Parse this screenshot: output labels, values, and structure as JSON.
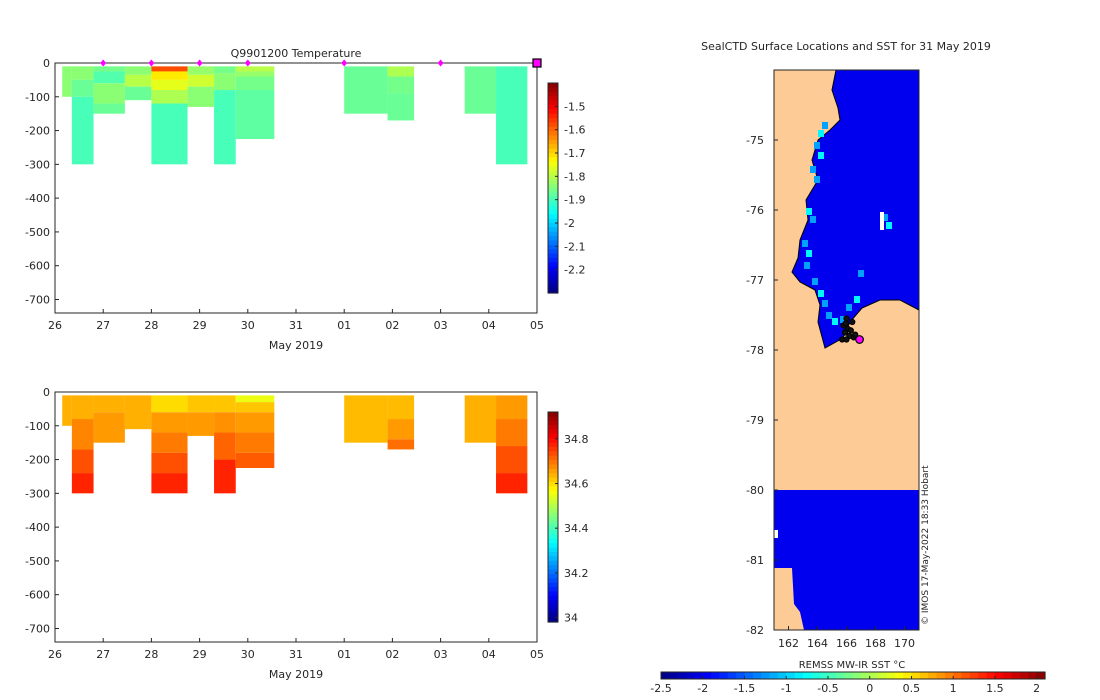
{
  "colors": {
    "land": "#fccb96",
    "ocean_deep": "#0a4fd0",
    "marker_magenta": "#ff00ff",
    "axis": "#262626",
    "nodata": "#ffffff"
  },
  "chart_data": [
    {
      "id": "temperature",
      "type": "heatmap",
      "title": "Q9901200  Temperature",
      "xlabel": "May 2019",
      "ylabel": "",
      "x_tick_labels": [
        "26",
        "27",
        "28",
        "29",
        "30",
        "31",
        "01",
        "02",
        "03",
        "04",
        "05"
      ],
      "xlim": [
        26,
        36
      ],
      "ylim": [
        -740,
        0
      ],
      "y_ticks": [
        0,
        -100,
        -200,
        -300,
        -400,
        -500,
        -600,
        -700
      ],
      "colorbar": {
        "min": -2.3,
        "max": -1.4,
        "colormap": "jet",
        "ticks": [
          -1.5,
          -1.6,
          -1.7,
          -1.8,
          -1.9,
          -2,
          -2.1,
          -2.2
        ]
      },
      "profiles": [
        {
          "x0": 26.15,
          "x1": 26.35,
          "segments": [
            {
              "d0": 10,
              "d1": 100,
              "v": -1.84
            }
          ]
        },
        {
          "x0": 26.35,
          "x1": 26.8,
          "segments": [
            {
              "d0": 10,
              "d1": 50,
              "v": -1.84
            },
            {
              "d0": 50,
              "d1": 100,
              "v": -1.87
            },
            {
              "d0": 100,
              "d1": 300,
              "v": -1.9
            }
          ]
        },
        {
          "x0": 26.8,
          "x1": 27.45,
          "segments": [
            {
              "d0": 10,
              "d1": 25,
              "v": -1.86
            },
            {
              "d0": 25,
              "d1": 60,
              "v": -1.89
            },
            {
              "d0": 60,
              "d1": 120,
              "v": -1.84
            },
            {
              "d0": 120,
              "d1": 150,
              "v": -1.87
            }
          ]
        },
        {
          "x0": 27.45,
          "x1": 28.0,
          "segments": [
            {
              "d0": 10,
              "d1": 35,
              "v": -1.84
            },
            {
              "d0": 35,
              "d1": 70,
              "v": -1.8
            },
            {
              "d0": 70,
              "d1": 110,
              "v": -1.87
            }
          ]
        },
        {
          "x0": 28.0,
          "x1": 28.75,
          "segments": [
            {
              "d0": 10,
              "d1": 25,
              "v": -1.58
            },
            {
              "d0": 25,
              "d1": 50,
              "v": -1.72
            },
            {
              "d0": 50,
              "d1": 80,
              "v": -1.76
            },
            {
              "d0": 80,
              "d1": 120,
              "v": -1.81
            },
            {
              "d0": 120,
              "d1": 300,
              "v": -1.9
            }
          ]
        },
        {
          "x0": 28.75,
          "x1": 29.3,
          "segments": [
            {
              "d0": 10,
              "d1": 35,
              "v": -1.83
            },
            {
              "d0": 35,
              "d1": 70,
              "v": -1.78
            },
            {
              "d0": 70,
              "d1": 130,
              "v": -1.84
            }
          ]
        },
        {
          "x0": 29.3,
          "x1": 29.75,
          "segments": [
            {
              "d0": 10,
              "d1": 30,
              "v": -1.86
            },
            {
              "d0": 30,
              "d1": 80,
              "v": -1.84
            },
            {
              "d0": 80,
              "d1": 300,
              "v": -1.9
            }
          ]
        },
        {
          "x0": 29.75,
          "x1": 30.55,
          "segments": [
            {
              "d0": 10,
              "d1": 25,
              "v": -1.8
            },
            {
              "d0": 25,
              "d1": 40,
              "v": -1.83
            },
            {
              "d0": 40,
              "d1": 80,
              "v": -1.86
            },
            {
              "d0": 80,
              "d1": 225,
              "v": -1.88
            }
          ]
        },
        {
          "x0": 32.0,
          "x1": 32.9,
          "segments": [
            {
              "d0": 10,
              "d1": 150,
              "v": -1.87
            }
          ]
        },
        {
          "x0": 32.9,
          "x1": 33.45,
          "segments": [
            {
              "d0": 10,
              "d1": 40,
              "v": -1.81
            },
            {
              "d0": 40,
              "d1": 90,
              "v": -1.86
            },
            {
              "d0": 90,
              "d1": 170,
              "v": -1.87
            }
          ]
        },
        {
          "x0": 34.5,
          "x1": 35.15,
          "segments": [
            {
              "d0": 10,
              "d1": 150,
              "v": -1.87
            }
          ]
        },
        {
          "x0": 35.15,
          "x1": 35.8,
          "segments": [
            {
              "d0": 10,
              "d1": 300,
              "v": -1.9
            }
          ]
        }
      ],
      "surface_markers": [
        27.0,
        28.0,
        29.0,
        30.0,
        32.0,
        34.0
      ],
      "end_marker": 36.0
    },
    {
      "id": "salinity",
      "type": "heatmap",
      "title": "",
      "xlabel": "May 2019",
      "ylabel": "",
      "x_tick_labels": [
        "26",
        "27",
        "28",
        "29",
        "30",
        "31",
        "01",
        "02",
        "03",
        "04",
        "05"
      ],
      "xlim": [
        26,
        36
      ],
      "ylim": [
        -740,
        0
      ],
      "y_ticks": [
        0,
        -100,
        -200,
        -300,
        -400,
        -500,
        -600,
        -700
      ],
      "colorbar": {
        "min": 33.98,
        "max": 34.92,
        "colormap": "jet",
        "ticks": [
          34.8,
          34.6,
          34.4,
          34.2,
          34
        ]
      },
      "profiles": [
        {
          "x0": 26.15,
          "x1": 26.35,
          "segments": [
            {
              "d0": 10,
              "d1": 100,
              "v": 34.64
            }
          ]
        },
        {
          "x0": 26.35,
          "x1": 26.8,
          "segments": [
            {
              "d0": 10,
              "d1": 80,
              "v": 34.64
            },
            {
              "d0": 80,
              "d1": 170,
              "v": 34.68
            },
            {
              "d0": 170,
              "d1": 240,
              "v": 34.73
            },
            {
              "d0": 240,
              "d1": 300,
              "v": 34.77
            }
          ]
        },
        {
          "x0": 26.8,
          "x1": 27.45,
          "segments": [
            {
              "d0": 10,
              "d1": 60,
              "v": 34.64
            },
            {
              "d0": 60,
              "d1": 150,
              "v": 34.66
            }
          ]
        },
        {
          "x0": 27.45,
          "x1": 28.0,
          "segments": [
            {
              "d0": 10,
              "d1": 110,
              "v": 34.64
            }
          ]
        },
        {
          "x0": 28.0,
          "x1": 28.75,
          "segments": [
            {
              "d0": 10,
              "d1": 60,
              "v": 34.6
            },
            {
              "d0": 60,
              "d1": 120,
              "v": 34.66
            },
            {
              "d0": 120,
              "d1": 180,
              "v": 34.69
            },
            {
              "d0": 180,
              "d1": 240,
              "v": 34.73
            },
            {
              "d0": 240,
              "d1": 300,
              "v": 34.77
            }
          ]
        },
        {
          "x0": 28.75,
          "x1": 29.3,
          "segments": [
            {
              "d0": 10,
              "d1": 60,
              "v": 34.62
            },
            {
              "d0": 60,
              "d1": 130,
              "v": 34.66
            }
          ]
        },
        {
          "x0": 29.3,
          "x1": 29.75,
          "segments": [
            {
              "d0": 10,
              "d1": 60,
              "v": 34.62
            },
            {
              "d0": 60,
              "d1": 120,
              "v": 34.67
            },
            {
              "d0": 120,
              "d1": 200,
              "v": 34.71
            },
            {
              "d0": 200,
              "d1": 300,
              "v": 34.77
            }
          ]
        },
        {
          "x0": 29.75,
          "x1": 30.55,
          "segments": [
            {
              "d0": 10,
              "d1": 30,
              "v": 34.55
            },
            {
              "d0": 30,
              "d1": 60,
              "v": 34.62
            },
            {
              "d0": 60,
              "d1": 120,
              "v": 34.66
            },
            {
              "d0": 120,
              "d1": 180,
              "v": 34.69
            },
            {
              "d0": 180,
              "d1": 225,
              "v": 34.72
            }
          ]
        },
        {
          "x0": 32.0,
          "x1": 32.9,
          "segments": [
            {
              "d0": 10,
              "d1": 150,
              "v": 34.63
            }
          ]
        },
        {
          "x0": 32.9,
          "x1": 33.45,
          "segments": [
            {
              "d0": 10,
              "d1": 80,
              "v": 34.63
            },
            {
              "d0": 80,
              "d1": 140,
              "v": 34.66
            },
            {
              "d0": 140,
              "d1": 170,
              "v": 34.7
            }
          ]
        },
        {
          "x0": 34.5,
          "x1": 35.15,
          "segments": [
            {
              "d0": 10,
              "d1": 150,
              "v": 34.64
            }
          ]
        },
        {
          "x0": 35.15,
          "x1": 35.8,
          "segments": [
            {
              "d0": 10,
              "d1": 80,
              "v": 34.66
            },
            {
              "d0": 80,
              "d1": 160,
              "v": 34.69
            },
            {
              "d0": 160,
              "d1": 240,
              "v": 34.73
            },
            {
              "d0": 240,
              "d1": 300,
              "v": 34.77
            }
          ]
        }
      ]
    },
    {
      "id": "sst_map",
      "type": "heatmap",
      "title": "SealCTD Surface Locations and SST for 31 May 2019",
      "lon_range": [
        161,
        171
      ],
      "lat_range": [
        -82,
        -74
      ],
      "lon_ticks": [
        162,
        164,
        166,
        168,
        170
      ],
      "lat_ticks": [
        -75,
        -76,
        -77,
        -78,
        -79,
        -80,
        -81,
        -82
      ],
      "colorbar": {
        "label": "REMSS MW-IR SST °C",
        "min": -2.5,
        "max": 2.1,
        "colormap": "jet",
        "tick_values": [
          -2.5,
          -2,
          -1.5,
          -1,
          -0.5,
          0,
          0.5,
          1,
          1.5,
          2
        ],
        "tick_labels": [
          "-2.5",
          "-2",
          "-1.5",
          "-1",
          "-0.5",
          "0",
          "0.5",
          "1",
          "1.5",
          "2"
        ]
      },
      "sst_values": {
        "open_ocean": -2.0,
        "coastal_cold": -1.2,
        "coastal_warm": -0.8
      },
      "track_points": [
        [
          166.0,
          -77.55
        ],
        [
          165.8,
          -77.65
        ],
        [
          166.1,
          -77.7
        ],
        [
          165.9,
          -77.75
        ],
        [
          166.3,
          -77.72
        ],
        [
          166.2,
          -77.8
        ],
        [
          165.7,
          -77.85
        ],
        [
          166.5,
          -77.82
        ],
        [
          166.4,
          -77.6
        ],
        [
          166.0,
          -77.85
        ],
        [
          165.95,
          -77.62
        ],
        [
          166.6,
          -77.78
        ]
      ],
      "last_position": [
        166.9,
        -77.85
      ],
      "credit": "© IMOS 17-May-2022 18:33 Hobart"
    }
  ]
}
